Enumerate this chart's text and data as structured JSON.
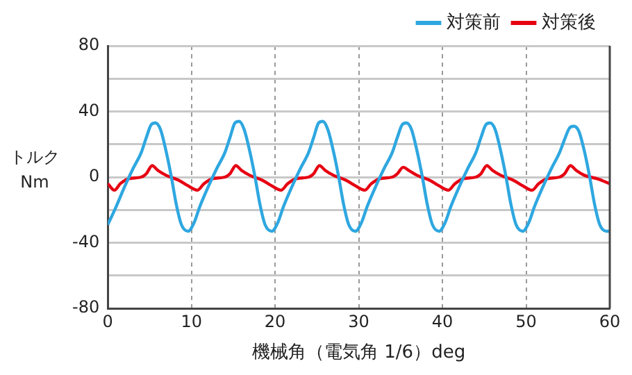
{
  "chart_data": {
    "type": "line",
    "xlabel": "機械角（電気角 1/6）deg",
    "ylabel": "トルク\nNm",
    "xlim": [
      0,
      60
    ],
    "xticks": [
      0,
      10,
      20,
      30,
      40,
      50,
      60
    ],
    "ylim": [
      -80,
      80
    ],
    "yticks": [
      -80,
      {
        "value": -60,
        "label": null
      },
      -40,
      {
        "value": -20,
        "label": null
      },
      0,
      {
        "value": 20,
        "label": null
      },
      40,
      {
        "value": 60,
        "label": null
      },
      80
    ],
    "grid": true,
    "legend": "top right",
    "marker": "none",
    "line_style": "solid",
    "series": [
      {
        "name": "対策前",
        "color": "#2ea7e0",
        "x": [
          0,
          1,
          2,
          3,
          4,
          4.6,
          5.2,
          5.7,
          6.3,
          7,
          7.6,
          8.2,
          8.8,
          9.6,
          10.3,
          11,
          12,
          13,
          14,
          14.6,
          15.2,
          15.7,
          16.3,
          17,
          17.6,
          18.2,
          18.8,
          19.6,
          20.3,
          21,
          22,
          23,
          24,
          24.6,
          25.2,
          25.7,
          26.3,
          27,
          27.6,
          28.2,
          28.8,
          29.6,
          30.3,
          31,
          32,
          33,
          34,
          34.6,
          35.2,
          35.7,
          36.3,
          37,
          37.6,
          38.2,
          38.8,
          39.6,
          40.3,
          41,
          42,
          43,
          44,
          44.6,
          45.2,
          45.7,
          46.3,
          47,
          47.6,
          48.2,
          48.8,
          49.6,
          50.3,
          51,
          52,
          53,
          54,
          54.6,
          55.2,
          55.7,
          56.3,
          57,
          57.6,
          58.2,
          58.8,
          59.6,
          60
        ],
        "values": [
          -29,
          -18,
          -6,
          5,
          15,
          24,
          32,
          33,
          29,
          15,
          0,
          -17,
          -29,
          -33,
          -28,
          -18,
          -6,
          5,
          15,
          24,
          33,
          34,
          29,
          15,
          0,
          -17,
          -29,
          -33,
          -28,
          -18,
          -6,
          5,
          15,
          24,
          33,
          34,
          29,
          15,
          0,
          -17,
          -29,
          -33,
          -28,
          -18,
          -6,
          5,
          15,
          24,
          32,
          33,
          29,
          15,
          0,
          -17,
          -29,
          -33,
          -28,
          -18,
          -6,
          5,
          15,
          24,
          32,
          33,
          29,
          15,
          0,
          -17,
          -29,
          -33,
          -28,
          -18,
          -6,
          5,
          15,
          23,
          30,
          31,
          28,
          15,
          0,
          -17,
          -29,
          -33,
          -33
        ]
      },
      {
        "name": "対策後",
        "color": "#e60012",
        "x": [
          0,
          0.8,
          1.5,
          2.5,
          4,
          4.6,
          5.3,
          6,
          7,
          8.5,
          9.5,
          10.7,
          11.5,
          12.5,
          14,
          14.6,
          15.3,
          16,
          17,
          18.5,
          19.5,
          20.7,
          21.5,
          22.5,
          24,
          24.6,
          25.3,
          26,
          27,
          28.5,
          29.5,
          30.7,
          31.5,
          32.5,
          34,
          34.6,
          35.3,
          36,
          37,
          38.5,
          39.5,
          40.7,
          41.5,
          42.5,
          44,
          44.6,
          45.3,
          46,
          47,
          48.5,
          49.5,
          50.7,
          51.5,
          52.5,
          54,
          54.6,
          55.3,
          56,
          57,
          58.5,
          60
        ],
        "values": [
          -4,
          -8,
          -4,
          -1,
          0,
          2,
          7,
          4,
          1,
          -2,
          -5,
          -8,
          -4,
          -1,
          0,
          2,
          7,
          4,
          1,
          -2,
          -5,
          -8,
          -4,
          -1,
          0,
          2,
          7,
          4,
          1,
          -2,
          -5,
          -8,
          -4,
          -1,
          0,
          2,
          6,
          4,
          1,
          -2,
          -5,
          -8,
          -4,
          -1,
          0,
          2,
          7,
          4,
          1,
          -2,
          -5,
          -8,
          -4,
          -1,
          0,
          2,
          7,
          4,
          1,
          -1,
          -4
        ]
      }
    ]
  }
}
